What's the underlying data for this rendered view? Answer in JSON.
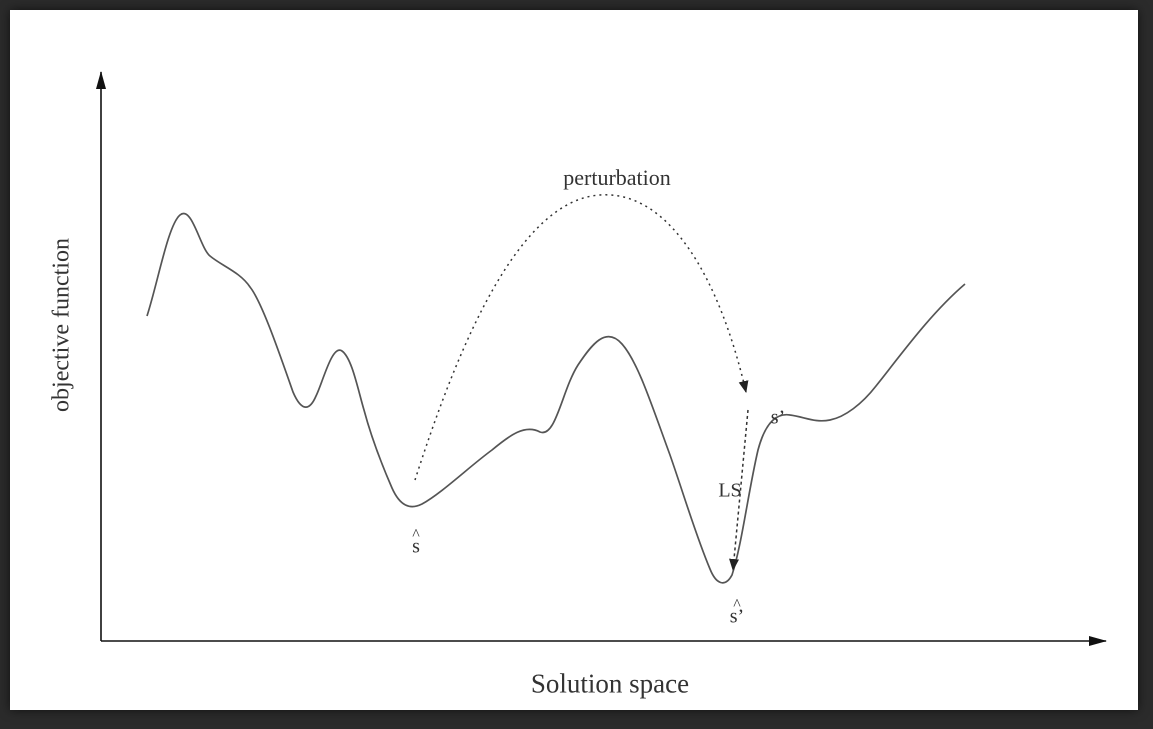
{
  "axes": {
    "y_label": "objective function",
    "x_label": "Solution space"
  },
  "annotations": {
    "perturbation": "perturbation",
    "local_search": "LS",
    "s_hat": "s",
    "s_prime": "s’",
    "s_hat_prime": "s’",
    "hat_mark": "^"
  },
  "colors": {
    "frame": "#2b2b2b",
    "background": "#ffffff",
    "curve": "#555555",
    "axes": "#111111",
    "text": "#333333"
  }
}
